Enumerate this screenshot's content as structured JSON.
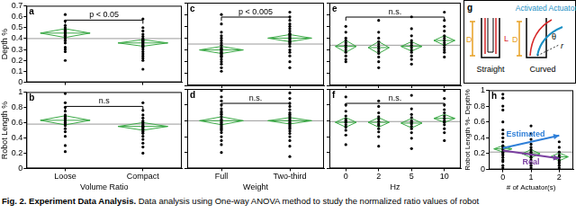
{
  "chart_data": [
    {
      "type": "scatter",
      "panel_label": "a",
      "y_label": "Depth %",
      "categories": [
        null,
        null
      ],
      "values": [
        [
          0.62,
          0.56,
          0.52,
          0.5,
          0.48,
          0.47,
          0.46,
          0.45,
          0.44,
          0.43,
          0.42,
          0.4,
          0.38,
          0.36,
          0.32,
          0.3,
          0.28,
          0.2
        ],
        [
          0.58,
          0.5,
          0.47,
          0.44,
          0.42,
          0.4,
          0.39,
          0.38,
          0.37,
          0.36,
          0.35,
          0.34,
          0.33,
          0.32,
          0.3,
          0.28,
          0.26,
          0.24,
          0.22,
          0.2,
          0.12
        ]
      ],
      "means": [
        0.45,
        0.36
      ],
      "ci_low": [
        0.41,
        0.33
      ],
      "ci_high": [
        0.49,
        0.39
      ],
      "grand_mean": 0.4,
      "annotation": {
        "text": "p < 0.05",
        "from": 0,
        "to": 1
      },
      "ylim": [
        0,
        0.7
      ],
      "yticks": [
        0,
        0.1,
        0.2,
        0.3,
        0.4,
        0.5,
        0.6,
        0.7
      ],
      "tick_labels": "y",
      "grid": false,
      "color": "#000000"
    },
    {
      "type": "scatter",
      "panel_label": "b",
      "y_label": "Robot Length %",
      "x_label": "Volume Ratio",
      "categories": [
        "Loose",
        "Compact"
      ],
      "values": [
        [
          0.98,
          0.86,
          0.8,
          0.75,
          0.7,
          0.68,
          0.66,
          0.64,
          0.62,
          0.6,
          0.58,
          0.56,
          0.52,
          0.48,
          0.42,
          0.3,
          0.22
        ],
        [
          0.86,
          0.76,
          0.7,
          0.66,
          0.62,
          0.6,
          0.58,
          0.56,
          0.55,
          0.54,
          0.52,
          0.5,
          0.48,
          0.46,
          0.42,
          0.38,
          0.33,
          0.28,
          0.2
        ]
      ],
      "means": [
        0.63,
        0.55
      ],
      "ci_low": [
        0.57,
        0.5
      ],
      "ci_high": [
        0.69,
        0.6
      ],
      "grand_mean": 0.58,
      "annotation": {
        "text": "n.s",
        "from": 0,
        "to": 1
      },
      "ylim": [
        0,
        1
      ],
      "yticks": [
        0,
        0.2,
        0.4,
        0.6,
        0.8,
        1
      ],
      "tick_labels": true,
      "grid": false,
      "color": "#000000"
    },
    {
      "type": "scatter",
      "panel_label": "c",
      "categories": [
        null,
        null
      ],
      "values": [
        [
          0.6,
          0.52,
          0.45,
          0.42,
          0.4,
          0.38,
          0.36,
          0.34,
          0.32,
          0.31,
          0.3,
          0.29,
          0.28,
          0.27,
          0.26,
          0.25,
          0.24,
          0.22,
          0.2,
          0.18,
          0.15,
          0.12
        ],
        [
          0.62,
          0.58,
          0.55,
          0.52,
          0.5,
          0.48,
          0.46,
          0.44,
          0.43,
          0.42,
          0.41,
          0.4,
          0.39,
          0.38,
          0.37,
          0.36,
          0.35,
          0.33,
          0.3,
          0.28,
          0.25,
          0.2,
          0.15
        ]
      ],
      "means": [
        0.3,
        0.4
      ],
      "ci_low": [
        0.27,
        0.37
      ],
      "ci_high": [
        0.33,
        0.43
      ],
      "grand_mean": 0.35,
      "annotation": {
        "text": "p < 0.005",
        "from": 0,
        "to": 1
      },
      "ylim": [
        0,
        0.7
      ],
      "yticks": [
        0,
        0.1,
        0.2,
        0.3,
        0.4,
        0.5,
        0.6,
        0.7
      ],
      "tick_labels": false,
      "grid": false,
      "color": "#000000"
    },
    {
      "type": "scatter",
      "panel_label": "d",
      "x_label": "Weight",
      "categories": [
        "Full",
        "Two-third"
      ],
      "values": [
        [
          0.98,
          0.9,
          0.85,
          0.8,
          0.75,
          0.72,
          0.7,
          0.68,
          0.65,
          0.62,
          0.6,
          0.58,
          0.56,
          0.54,
          0.52,
          0.5,
          0.48,
          0.45,
          0.4,
          0.35,
          0.3,
          0.2
        ],
        [
          0.95,
          0.88,
          0.82,
          0.78,
          0.74,
          0.7,
          0.68,
          0.66,
          0.64,
          0.62,
          0.6,
          0.58,
          0.56,
          0.54,
          0.52,
          0.5,
          0.47,
          0.44,
          0.4,
          0.35,
          0.28,
          0.15
        ]
      ],
      "means": [
        0.6,
        0.6
      ],
      "ci_low": [
        0.55,
        0.56
      ],
      "ci_high": [
        0.65,
        0.64
      ],
      "grand_mean": 0.6,
      "annotation": {
        "text": "n.s.",
        "from": 0,
        "to": 1
      },
      "ylim": [
        0,
        1
      ],
      "yticks": [
        0,
        0.2,
        0.4,
        0.6,
        0.8,
        1
      ],
      "tick_labels": "x",
      "grid": false,
      "color": "#000000"
    },
    {
      "type": "scatter",
      "panel_label": "e",
      "categories": [
        null,
        null,
        null,
        null
      ],
      "values": [
        [
          0.5,
          0.45,
          0.4,
          0.38,
          0.36,
          0.34,
          0.32,
          0.3,
          0.28,
          0.25,
          0.22,
          0.2
        ],
        [
          0.55,
          0.45,
          0.4,
          0.37,
          0.35,
          0.33,
          0.31,
          0.29,
          0.27,
          0.24,
          0.2,
          0.15
        ],
        [
          0.58,
          0.48,
          0.42,
          0.38,
          0.36,
          0.34,
          0.32,
          0.3,
          0.28,
          0.25,
          0.22,
          0.18
        ],
        [
          0.62,
          0.55,
          0.5,
          0.46,
          0.42,
          0.4,
          0.38,
          0.36,
          0.34,
          0.32,
          0.3,
          0.28,
          0.24
        ]
      ],
      "means": [
        0.33,
        0.32,
        0.33,
        0.38
      ],
      "ci_low": [
        0.28,
        0.27,
        0.29,
        0.34
      ],
      "ci_high": [
        0.38,
        0.37,
        0.37,
        0.42
      ],
      "grand_mean": 0.34,
      "annotation": {
        "text": "n.s.",
        "from": 0,
        "to": 3
      },
      "ylim": [
        0,
        0.7
      ],
      "yticks": [
        0,
        0.1,
        0.2,
        0.3,
        0.4,
        0.5,
        0.6,
        0.7
      ],
      "tick_labels": false,
      "grid": false,
      "color": "#000000"
    },
    {
      "type": "scatter",
      "panel_label": "f",
      "x_label": "Hz",
      "categories": [
        "0",
        "2",
        "5",
        "10"
      ],
      "values": [
        [
          0.9,
          0.8,
          0.72,
          0.66,
          0.62,
          0.6,
          0.58,
          0.55,
          0.52,
          0.48,
          0.42,
          0.3
        ],
        [
          0.85,
          0.78,
          0.7,
          0.65,
          0.62,
          0.59,
          0.56,
          0.54,
          0.5,
          0.46,
          0.4,
          0.28
        ],
        [
          0.92,
          0.75,
          0.68,
          0.64,
          0.6,
          0.58,
          0.56,
          0.53,
          0.5,
          0.45,
          0.38,
          0.25
        ],
        [
          0.98,
          0.88,
          0.8,
          0.74,
          0.7,
          0.66,
          0.63,
          0.6,
          0.58,
          0.55,
          0.5,
          0.45,
          0.35
        ]
      ],
      "means": [
        0.58,
        0.58,
        0.57,
        0.63
      ],
      "ci_low": [
        0.52,
        0.52,
        0.51,
        0.58
      ],
      "ci_high": [
        0.64,
        0.64,
        0.63,
        0.68
      ],
      "grand_mean": 0.59,
      "annotation": {
        "text": "n.s.",
        "from": 0,
        "to": 3
      },
      "ylim": [
        0,
        1
      ],
      "yticks": [
        0,
        0.2,
        0.4,
        0.6,
        0.8,
        1
      ],
      "tick_labels": "x",
      "grid": false,
      "color": "#000000"
    },
    {
      "type": "scatter",
      "panel_label": "h",
      "y_label": "Robot Length %- Depth%",
      "x_label": "# of Actuator(s)",
      "categories": [
        "0",
        "1",
        "2"
      ],
      "values": [
        [
          0.95,
          0.9,
          0.8,
          0.75,
          0.6,
          0.5,
          0.45,
          0.4,
          0.35,
          0.3,
          0.28,
          0.25,
          0.22,
          0.2,
          0.18,
          0.15,
          0.12,
          0.1,
          0.05,
          0.02
        ],
        [
          0.55,
          0.45,
          0.38,
          0.32,
          0.28,
          0.25,
          0.22,
          0.2,
          0.18,
          0.15,
          0.12,
          0.08,
          0.05,
          0.02
        ],
        [
          0.35,
          0.28,
          0.22,
          0.18,
          0.15,
          0.12,
          0.1,
          0.08,
          0.05,
          0.02
        ]
      ],
      "means": [
        0.26,
        0.2,
        0.16
      ],
      "ci_low": [
        0.22,
        0.15,
        0.11
      ],
      "ci_high": [
        0.3,
        0.25,
        0.21
      ],
      "grand_mean": 0.22,
      "arrows": [
        {
          "text": "Estimated",
          "color": "#2f7fd8",
          "from": [
            0,
            0.27
          ],
          "to": [
            2,
            0.43
          ]
        },
        {
          "text": "Real",
          "color": "#7a3fa0",
          "from": [
            0,
            0.24
          ],
          "to": [
            2,
            0.14
          ]
        }
      ],
      "ylim": [
        0,
        1
      ],
      "yticks": [
        0,
        0.2,
        0.4,
        0.6,
        0.8,
        1
      ],
      "tick_labels": true,
      "grid": false,
      "color": "#000000"
    }
  ],
  "diagram": {
    "panel_label": "g",
    "title": "Activated Actuator",
    "straight": "Straight",
    "curved": "Curved",
    "labels": {
      "depth": "D",
      "length": "L",
      "radius": "r",
      "angle": "θ"
    }
  },
  "caption": {
    "bold": "Fig. 2. Experiment Data Analysis.",
    "text": "Data analysis using One-way ANOVA method to study the normalized ratio values of robot"
  }
}
